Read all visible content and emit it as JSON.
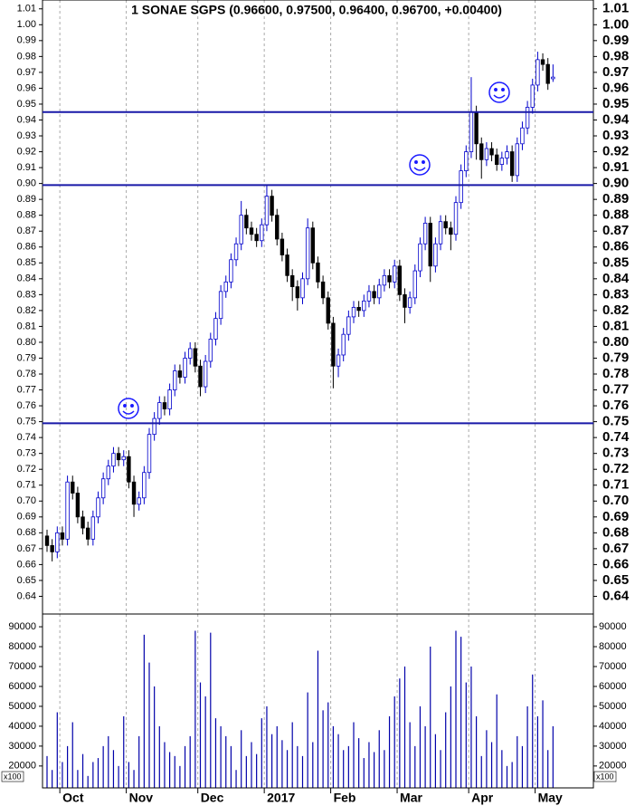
{
  "chart_data": {
    "type": "candlestick",
    "title": "1 SONAE SGPS (0.96600, 0.97500, 0.96400, 0.96700, +0.00400)",
    "categories": [
      null,
      null,
      null,
      "Oct",
      null,
      null,
      null,
      null,
      null,
      null,
      null,
      null,
      null,
      null,
      null,
      null,
      "Nov",
      null,
      null,
      null,
      null,
      null,
      null,
      null,
      null,
      null,
      null,
      null,
      null,
      null,
      "Dec",
      null,
      null,
      null,
      null,
      null,
      null,
      null,
      null,
      null,
      null,
      null,
      null,
      "2017",
      null,
      null,
      null,
      null,
      null,
      null,
      null,
      null,
      null,
      null,
      null,
      null,
      "Feb",
      null,
      null,
      null,
      null,
      null,
      null,
      null,
      null,
      null,
      null,
      null,
      null,
      "Mar",
      null,
      null,
      null,
      null,
      null,
      null,
      null,
      null,
      null,
      null,
      null,
      null,
      null,
      "Apr",
      null,
      null,
      null,
      null,
      null,
      null,
      null,
      null,
      null,
      null,
      null,
      null,
      "May",
      null,
      null,
      null
    ],
    "open": [
      0.678,
      0.672,
      0.668,
      0.68,
      0.676,
      0.712,
      0.705,
      0.69,
      0.683,
      0.676,
      0.69,
      0.702,
      0.714,
      0.722,
      0.73,
      0.726,
      0.728,
      0.712,
      0.698,
      0.702,
      0.718,
      0.742,
      0.752,
      0.762,
      0.758,
      0.77,
      0.782,
      0.778,
      0.79,
      0.796,
      0.785,
      0.772,
      0.788,
      0.802,
      0.815,
      0.832,
      0.838,
      0.852,
      0.862,
      0.88,
      0.872,
      0.868,
      0.864,
      0.874,
      0.892,
      0.88,
      0.865,
      0.855,
      0.842,
      0.835,
      0.828,
      0.84,
      0.872,
      0.85,
      0.838,
      0.828,
      0.812,
      0.785,
      0.792,
      0.805,
      0.816,
      0.822,
      0.82,
      0.826,
      0.832,
      0.828,
      0.836,
      0.842,
      0.838,
      0.848,
      0.83,
      0.822,
      0.828,
      0.845,
      0.862,
      0.875,
      0.848,
      0.862,
      0.876,
      0.872,
      0.868,
      0.888,
      0.908,
      0.92,
      0.945,
      0.925,
      0.915,
      0.922,
      0.918,
      0.912,
      0.916,
      0.92,
      0.905,
      0.925,
      0.935,
      0.948,
      0.962,
      0.978,
      0.975,
      0.966
    ],
    "high": [
      0.682,
      0.676,
      0.684,
      0.684,
      0.716,
      0.716,
      0.709,
      0.694,
      0.687,
      0.694,
      0.706,
      0.718,
      0.726,
      0.734,
      0.734,
      0.732,
      0.732,
      0.716,
      0.706,
      0.722,
      0.746,
      0.756,
      0.766,
      0.766,
      0.774,
      0.786,
      0.786,
      0.794,
      0.8,
      0.8,
      0.789,
      0.792,
      0.806,
      0.819,
      0.836,
      0.842,
      0.856,
      0.866,
      0.889,
      0.884,
      0.876,
      0.872,
      0.878,
      0.899,
      0.896,
      0.884,
      0.869,
      0.859,
      0.846,
      0.839,
      0.844,
      0.878,
      0.876,
      0.854,
      0.842,
      0.832,
      0.816,
      0.796,
      0.809,
      0.82,
      0.826,
      0.826,
      0.83,
      0.836,
      0.836,
      0.84,
      0.846,
      0.846,
      0.852,
      0.852,
      0.834,
      0.832,
      0.849,
      0.866,
      0.879,
      0.879,
      0.866,
      0.88,
      0.88,
      0.876,
      0.892,
      0.912,
      0.924,
      0.967,
      0.949,
      0.929,
      0.926,
      0.926,
      0.922,
      0.92,
      0.924,
      0.924,
      0.929,
      0.939,
      0.952,
      0.966,
      0.983,
      0.982,
      0.979,
      0.975
    ],
    "low": [
      0.668,
      0.662,
      0.664,
      0.672,
      0.672,
      0.701,
      0.686,
      0.679,
      0.672,
      0.672,
      0.686,
      0.698,
      0.71,
      0.718,
      0.722,
      0.722,
      0.708,
      0.69,
      0.694,
      0.698,
      0.714,
      0.738,
      0.748,
      0.754,
      0.754,
      0.766,
      0.774,
      0.774,
      0.786,
      0.781,
      0.766,
      0.768,
      0.784,
      0.798,
      0.811,
      0.828,
      0.834,
      0.848,
      0.858,
      0.868,
      0.864,
      0.86,
      0.86,
      0.87,
      0.876,
      0.861,
      0.851,
      0.838,
      0.826,
      0.82,
      0.824,
      0.836,
      0.846,
      0.834,
      0.824,
      0.808,
      0.771,
      0.778,
      0.788,
      0.801,
      0.812,
      0.816,
      0.816,
      0.822,
      0.824,
      0.824,
      0.832,
      0.834,
      0.834,
      0.826,
      0.812,
      0.818,
      0.824,
      0.841,
      0.858,
      0.838,
      0.844,
      0.858,
      0.868,
      0.858,
      0.864,
      0.884,
      0.904,
      0.916,
      0.915,
      0.903,
      0.911,
      0.914,
      0.908,
      0.908,
      0.912,
      0.901,
      0.901,
      0.921,
      0.931,
      0.944,
      0.958,
      0.971,
      0.959,
      0.964
    ],
    "close": [
      0.672,
      0.668,
      0.68,
      0.676,
      0.712,
      0.705,
      0.69,
      0.683,
      0.676,
      0.69,
      0.702,
      0.714,
      0.722,
      0.73,
      0.726,
      0.728,
      0.712,
      0.698,
      0.702,
      0.718,
      0.742,
      0.752,
      0.762,
      0.758,
      0.77,
      0.782,
      0.778,
      0.79,
      0.796,
      0.785,
      0.772,
      0.788,
      0.802,
      0.815,
      0.832,
      0.838,
      0.852,
      0.862,
      0.88,
      0.872,
      0.868,
      0.864,
      0.874,
      0.892,
      0.88,
      0.865,
      0.855,
      0.842,
      0.835,
      0.828,
      0.84,
      0.872,
      0.85,
      0.838,
      0.828,
      0.812,
      0.785,
      0.792,
      0.805,
      0.816,
      0.822,
      0.82,
      0.826,
      0.832,
      0.828,
      0.836,
      0.842,
      0.838,
      0.848,
      0.83,
      0.822,
      0.828,
      0.845,
      0.862,
      0.875,
      0.848,
      0.862,
      0.876,
      0.872,
      0.868,
      0.888,
      0.908,
      0.92,
      0.945,
      0.925,
      0.915,
      0.922,
      0.918,
      0.912,
      0.916,
      0.92,
      0.905,
      0.925,
      0.935,
      0.948,
      0.962,
      0.978,
      0.975,
      0.963,
      0.967
    ],
    "volume": [
      25000,
      18000,
      47000,
      22000,
      30000,
      42000,
      18000,
      26000,
      15000,
      22000,
      24000,
      30000,
      35000,
      28000,
      20000,
      45000,
      22000,
      18000,
      35000,
      86000,
      72000,
      60000,
      40000,
      32000,
      27000,
      25000,
      20000,
      30000,
      35000,
      88000,
      62000,
      55000,
      87000,
      44000,
      40000,
      35000,
      30000,
      18000,
      38000,
      25000,
      32000,
      26000,
      44000,
      50000,
      36000,
      40000,
      33000,
      28000,
      42000,
      30000,
      25000,
      57000,
      32000,
      78000,
      48000,
      52000,
      40000,
      36000,
      28000,
      30000,
      42000,
      34000,
      24000,
      32000,
      27000,
      38000,
      28000,
      45000,
      55000,
      64000,
      70000,
      42000,
      30000,
      50000,
      40000,
      80000,
      36000,
      28000,
      47000,
      60000,
      88000,
      85000,
      62000,
      70000,
      45000,
      25000,
      38000,
      32000,
      56000,
      28000,
      20000,
      22000,
      35000,
      30000,
      50000,
      66000,
      45000,
      53000,
      28000,
      40000
    ],
    "ylim": [
      0.63,
      1.015
    ],
    "yticks": [
      0.64,
      0.65,
      0.66,
      0.67,
      0.68,
      0.69,
      {
        "value": 0.7,
        "label": "0.70"
      },
      0.71,
      0.72,
      0.73,
      0.74,
      0.75,
      0.76,
      0.77,
      0.78,
      0.79,
      {
        "value": 0.8,
        "label": "0.80"
      },
      0.81,
      0.82,
      0.83,
      0.84,
      0.85,
      0.86,
      0.87,
      0.88,
      0.89,
      {
        "value": 0.9,
        "label": "0.90"
      },
      0.91,
      0.92,
      0.93,
      0.94,
      0.95,
      0.96,
      0.97,
      0.98,
      0.99,
      {
        "value": 1,
        "label": "1.00"
      },
      1.01
    ],
    "volume_ylim": [
      9000,
      95500
    ],
    "volume_yticks": [
      20000,
      30000,
      40000,
      50000,
      60000,
      70000,
      80000,
      90000
    ],
    "volume_unit": "x100",
    "levels": [
      0.945,
      0.899,
      0.749
    ],
    "up_color": "#0000cc",
    "down_color": "#000000",
    "volume_color": "#0000aa",
    "level_color": "#1818a8"
  }
}
